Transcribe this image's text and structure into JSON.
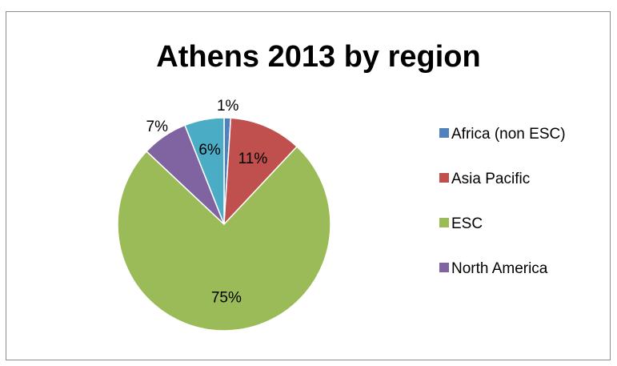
{
  "chart_data": {
    "type": "pie",
    "title": "Athens 2013 by region",
    "categories": [
      "Africa (non ESC)",
      "Asia Pacific",
      "ESC",
      "North America",
      ""
    ],
    "values": [
      1,
      11,
      75,
      7,
      6
    ],
    "labels": [
      "1%",
      "11%",
      "75%",
      "7%",
      "6%"
    ],
    "colors": [
      "#4f81bd",
      "#c0504d",
      "#9bbb59",
      "#8064a2",
      "#4bacc6"
    ],
    "legend": {
      "position": "right",
      "entries": [
        "Africa (non ESC)",
        "Asia Pacific",
        "ESC",
        "North America"
      ]
    },
    "start_angle_deg": 0,
    "direction": "clockwise"
  }
}
